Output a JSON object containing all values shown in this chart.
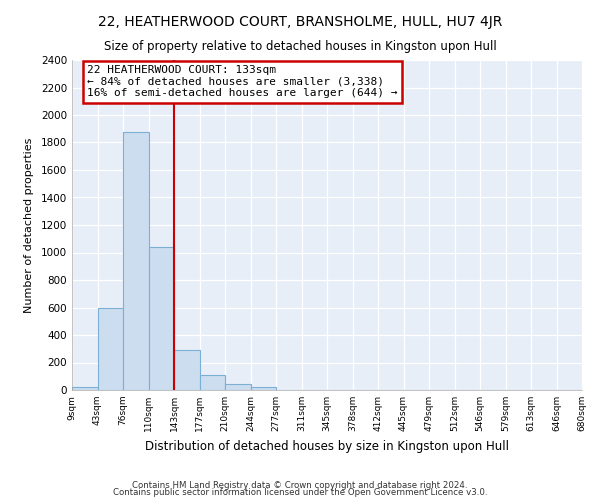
{
  "title": "22, HEATHERWOOD COURT, BRANSHOLME, HULL, HU7 4JR",
  "subtitle": "Size of property relative to detached houses in Kingston upon Hull",
  "xlabel": "Distribution of detached houses by size in Kingston upon Hull",
  "ylabel": "Number of detached properties",
  "bin_labels": [
    "9sqm",
    "43sqm",
    "76sqm",
    "110sqm",
    "143sqm",
    "177sqm",
    "210sqm",
    "244sqm",
    "277sqm",
    "311sqm",
    "345sqm",
    "378sqm",
    "412sqm",
    "445sqm",
    "479sqm",
    "512sqm",
    "546sqm",
    "579sqm",
    "613sqm",
    "646sqm",
    "680sqm"
  ],
  "bar_heights": [
    20,
    600,
    1880,
    1040,
    290,
    110,
    45,
    20,
    0,
    0,
    0,
    0,
    0,
    0,
    0,
    0,
    0,
    0,
    0,
    0
  ],
  "bar_color": "#ccddf0",
  "bar_edge_color": "#7bafd4",
  "property_label": "22 HEATHERWOOD COURT: 133sqm",
  "annotation_smaller": "← 84% of detached houses are smaller (3,338)",
  "annotation_larger": "16% of semi-detached houses are larger (644) →",
  "line_color": "#cc0000",
  "box_edge_color": "#cc0000",
  "ylim": [
    0,
    2400
  ],
  "yticks": [
    0,
    200,
    400,
    600,
    800,
    1000,
    1200,
    1400,
    1600,
    1800,
    2000,
    2200,
    2400
  ],
  "footnote1": "Contains HM Land Registry data © Crown copyright and database right 2024.",
  "footnote2": "Contains public sector information licensed under the Open Government Licence v3.0.",
  "fig_bg_color": "#ffffff",
  "plot_bg_color": "#e8eef8"
}
